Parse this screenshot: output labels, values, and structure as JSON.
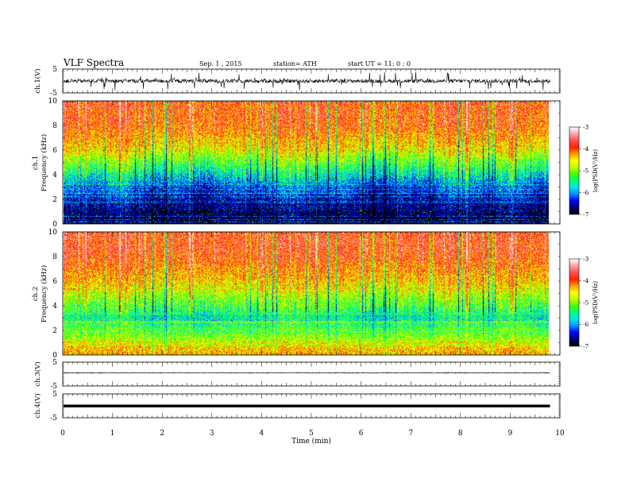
{
  "header": {
    "title": "VLF  Spectra",
    "date": "Sep. 1  , 2015",
    "station": "station= ATH",
    "start": "start  UT  =   11: 0  : 0"
  },
  "axes": {
    "xlabel": "Time  (min)",
    "ch1_label": "ch.1(V)",
    "ch3_label": "ch.3(V)",
    "ch4_label": "ch.4(V)",
    "spec1_label": "ch.1",
    "spec2_label": "ch.2",
    "freq_label": "Frequency  (kHz)",
    "colorbar_label": "log(PSD(V²/Hz)"
  },
  "chart_data": [
    {
      "type": "line",
      "panel": "ch.1 waveform",
      "ylabel": "ch.1(V)",
      "ylim": [
        -5,
        5
      ],
      "yticks": [
        "5",
        "-5"
      ],
      "baseline": 0,
      "description_level": "noisy impulsive signal, spikes up to about +/-4 V"
    },
    {
      "type": "heatmap",
      "panel": "ch.1 spectrogram",
      "ylabel": "Frequency  (kHz)",
      "ylim": [
        0,
        10
      ],
      "yticks": [
        "0",
        "2",
        "4",
        "6",
        "8",
        "10"
      ],
      "xlim": [
        0,
        10
      ],
      "data_end_min": 9.8,
      "colorbar": {
        "range": [
          -7,
          -3
        ],
        "ticks": [
          "-3",
          "-4",
          "-5",
          "-6",
          "-7"
        ],
        "label": "log(PSD(V²/Hz)"
      },
      "profile": [
        {
          "freq_khz": 0.5,
          "log_psd": -6.9
        },
        {
          "freq_khz": 1.5,
          "log_psd": -6.6
        },
        {
          "freq_khz": 3.0,
          "log_psd": -6.2
        },
        {
          "freq_khz": 4.5,
          "log_psd": -5.4
        },
        {
          "freq_khz": 6.0,
          "log_psd": -4.6
        },
        {
          "freq_khz": 8.0,
          "log_psd": -4.0
        },
        {
          "freq_khz": 10.0,
          "log_psd": -3.9
        }
      ]
    },
    {
      "type": "heatmap",
      "panel": "ch.2 spectrogram",
      "ylabel": "Frequency  (kHz)",
      "ylim": [
        0,
        10
      ],
      "yticks": [
        "0",
        "2",
        "4",
        "6",
        "8",
        "10"
      ],
      "xlim": [
        0,
        10
      ],
      "data_end_min": 9.8,
      "colorbar": {
        "range": [
          -7,
          -3
        ],
        "ticks": [
          "-3",
          "-4",
          "-5",
          "-6",
          "-7"
        ],
        "label": "log(PSD(V²/Hz)"
      },
      "profile": [
        {
          "freq_khz": 0.5,
          "log_psd": -4.4
        },
        {
          "freq_khz": 1.5,
          "log_psd": -5.0
        },
        {
          "freq_khz": 3.0,
          "log_psd": -5.6
        },
        {
          "freq_khz": 4.5,
          "log_psd": -5.0
        },
        {
          "freq_khz": 6.0,
          "log_psd": -4.4
        },
        {
          "freq_khz": 8.0,
          "log_psd": -3.9
        },
        {
          "freq_khz": 10.0,
          "log_psd": -3.8
        }
      ]
    },
    {
      "type": "line",
      "panel": "ch.3 waveform",
      "ylabel": "ch.3(V)",
      "ylim": [
        -5,
        5
      ],
      "yticks": [
        "5",
        "-5"
      ],
      "baseline": 0.5
    },
    {
      "type": "line",
      "panel": "ch.4 waveform",
      "ylabel": "ch.4(V)",
      "ylim": [
        -5,
        5
      ],
      "yticks": [
        "5",
        "-5"
      ],
      "baseline": 0
    }
  ],
  "x_axis": {
    "xlim": [
      0,
      10
    ],
    "ticks": [
      "0",
      "1",
      "2",
      "3",
      "4",
      "5",
      "6",
      "7",
      "8",
      "9",
      "10"
    ]
  },
  "colormap": [
    "#000000",
    "#00007a",
    "#0000ff",
    "#0090ff",
    "#00e8e8",
    "#00ff80",
    "#40ff00",
    "#c0ff00",
    "#ffff00",
    "#ffa000",
    "#ff2000",
    "#ff5050",
    "#ffa0a0",
    "#ffffff"
  ]
}
